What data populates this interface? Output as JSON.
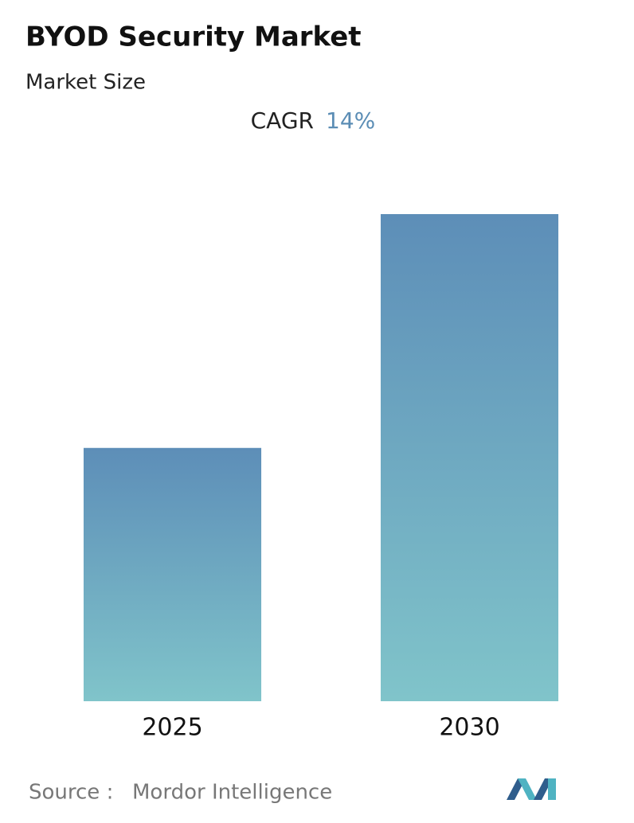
{
  "chart_data": {
    "type": "bar",
    "title": "BYOD Security Market",
    "subtitle": "Market Size",
    "cagr_label": "CAGR",
    "cagr_value": "14%",
    "categories": [
      "2025",
      "2030"
    ],
    "values": [
      52,
      100
    ],
    "colors": [
      "#5d8eb8",
      "#80c4ca"
    ],
    "ylim": [
      0,
      100
    ],
    "grid": false,
    "source_label": "Source :",
    "source": "Mordor Intelligence"
  }
}
